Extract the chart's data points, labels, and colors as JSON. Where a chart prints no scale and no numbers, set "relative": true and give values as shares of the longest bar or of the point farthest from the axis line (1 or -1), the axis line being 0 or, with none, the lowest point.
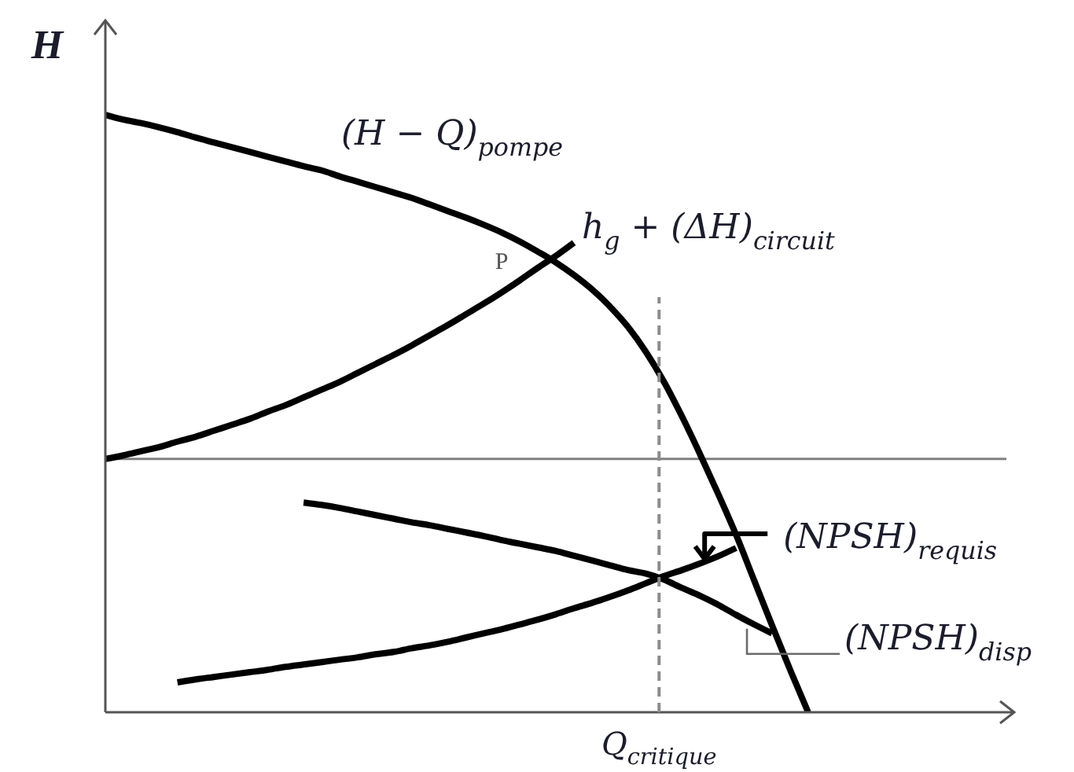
{
  "chart_data": {
    "type": "line",
    "ylabel": "H",
    "relative": true,
    "categories": [
      null,
      null,
      null,
      null,
      null,
      null,
      null,
      null,
      null,
      null,
      null,
      null,
      null,
      null,
      null,
      null,
      null,
      null,
      null,
      null,
      null,
      null,
      null,
      null,
      null,
      null,
      null,
      null,
      null,
      null,
      null,
      null,
      null,
      null,
      null,
      null,
      null,
      null,
      null,
      null,
      null,
      null,
      null,
      null,
      null,
      null,
      null,
      null,
      null,
      null,
      null
    ],
    "series": [
      {
        "name": "(H − Q)$_{pompe}$",
        "color": "#000000",
        "values": [
          1,
          0.992,
          0.986,
          0.979,
          0.971,
          0.962,
          0.954,
          0.946,
          0.938,
          0.93,
          0.922,
          0.914,
          0.907,
          0.897,
          0.888,
          0.879,
          0.87,
          0.861,
          0.85,
          0.839,
          0.828,
          0.816,
          0.803,
          0.788,
          0.771,
          0.753,
          0.732,
          0.708,
          0.679,
          0.645,
          0.603,
          0.553,
          0.495,
          0.432,
          0.366,
          0.297,
          0.221,
          0.145,
          0.071,
          0,
          null,
          null,
          null,
          null,
          null,
          null,
          null,
          null,
          null,
          null,
          null
        ]
      },
      {
        "name": "h$_{g}$ + (ΔH)$_{circuit}$",
        "color": "#000000",
        "values": [
          0.424,
          0.43,
          0.437,
          0.444,
          0.453,
          0.461,
          0.471,
          0.481,
          0.491,
          0.503,
          0.514,
          0.527,
          0.54,
          0.553,
          0.568,
          0.583,
          0.598,
          0.614,
          0.631,
          0.648,
          0.666,
          0.684,
          0.703,
          0.723,
          0.744,
          0.764,
          0.786,
          null,
          null,
          null,
          null,
          null,
          null,
          null,
          null,
          null,
          null,
          null,
          null,
          null,
          null,
          null,
          null,
          null,
          null,
          null,
          null,
          null,
          null,
          null,
          null
        ]
      },
      {
        "name": "(NPSH)$_{requis}$",
        "color": "#000000",
        "values": [
          null,
          null,
          null,
          null,
          0.05,
          0.055,
          0.059,
          0.063,
          0.067,
          0.071,
          0.076,
          0.08,
          0.084,
          0.088,
          0.092,
          0.097,
          0.101,
          0.107,
          0.112,
          0.118,
          0.125,
          0.132,
          0.139,
          0.147,
          0.155,
          0.164,
          0.174,
          0.183,
          0.193,
          0.204,
          0.216,
          0.228,
          0.238,
          0.249,
          0.261,
          0.275,
          null,
          null,
          null,
          null,
          null,
          null,
          null,
          null,
          null,
          null,
          null,
          null,
          null,
          null,
          null
        ]
      },
      {
        "name": "(NPSH)$_{disp}$",
        "color": "#000000",
        "values": [
          null,
          null,
          null,
          null,
          null,
          null,
          null,
          null,
          null,
          null,
          null,
          0.351,
          0.347,
          0.342,
          0.336,
          0.33,
          0.324,
          0.318,
          0.313,
          0.307,
          0.301,
          0.295,
          0.288,
          0.282,
          0.276,
          0.27,
          0.262,
          0.254,
          0.246,
          0.238,
          0.232,
          0.222,
          0.208,
          0.195,
          0.18,
          0.163,
          0.147,
          0.132,
          null,
          null,
          null,
          null,
          null,
          null,
          null,
          null,
          null,
          null,
          null,
          null,
          null
        ]
      }
    ],
    "ref_lines": [
      {
        "axis": "y",
        "value": 0.424,
        "color": "#808080"
      }
    ],
    "annotations": [
      "P",
      "Q$_{critique}$"
    ]
  }
}
